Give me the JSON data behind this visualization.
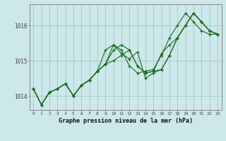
{
  "title": "Graphe pression niveau de la mer (hPa)",
  "bg_color": "#cce8ea",
  "grid_color": "#aacccc",
  "line_color": "#1a6b1a",
  "marker_color": "#1a6b1a",
  "x_labels": [
    "0",
    "1",
    "2",
    "3",
    "4",
    "5",
    "6",
    "7",
    "8",
    "9",
    "10",
    "11",
    "12",
    "13",
    "14",
    "15",
    "16",
    "17",
    "18",
    "19",
    "20",
    "21",
    "22",
    "23"
  ],
  "ylim": [
    1013.6,
    1016.6
  ],
  "yticks": [
    1014,
    1015,
    1016
  ],
  "series": [
    [
      1014.2,
      1013.75,
      1014.1,
      1014.2,
      1014.35,
      1014.0,
      1014.3,
      1014.45,
      1014.7,
      1014.9,
      1015.3,
      1015.45,
      1015.3,
      1014.85,
      1014.65,
      1014.7,
      1014.75,
      1015.15,
      1015.65,
      1016.0,
      1016.35,
      1016.1,
      1015.85,
      1015.75
    ],
    [
      1014.2,
      1013.75,
      1014.1,
      1014.2,
      1014.35,
      1014.0,
      1014.3,
      1014.45,
      1014.7,
      1014.9,
      1015.0,
      1015.15,
      1015.3,
      1014.85,
      1014.65,
      1014.7,
      1015.2,
      1015.45,
      1015.65,
      1016.0,
      1016.35,
      1016.1,
      1015.85,
      1015.75
    ],
    [
      1014.2,
      1013.75,
      1014.1,
      1014.2,
      1014.35,
      1014.0,
      1014.3,
      1014.45,
      1014.7,
      1014.9,
      1015.45,
      1015.2,
      1015.05,
      1015.25,
      1014.5,
      1014.65,
      1014.75,
      1015.15,
      1015.65,
      1016.0,
      1016.35,
      1016.1,
      1015.85,
      1015.75
    ],
    [
      1014.2,
      1013.75,
      1014.1,
      1014.2,
      1014.35,
      1014.0,
      1014.3,
      1014.45,
      1014.7,
      1015.3,
      1015.45,
      1015.3,
      1014.85,
      1014.65,
      1014.7,
      1014.75,
      1015.15,
      1015.65,
      1016.0,
      1016.35,
      1016.1,
      1015.85,
      1015.75,
      1015.75
    ]
  ]
}
